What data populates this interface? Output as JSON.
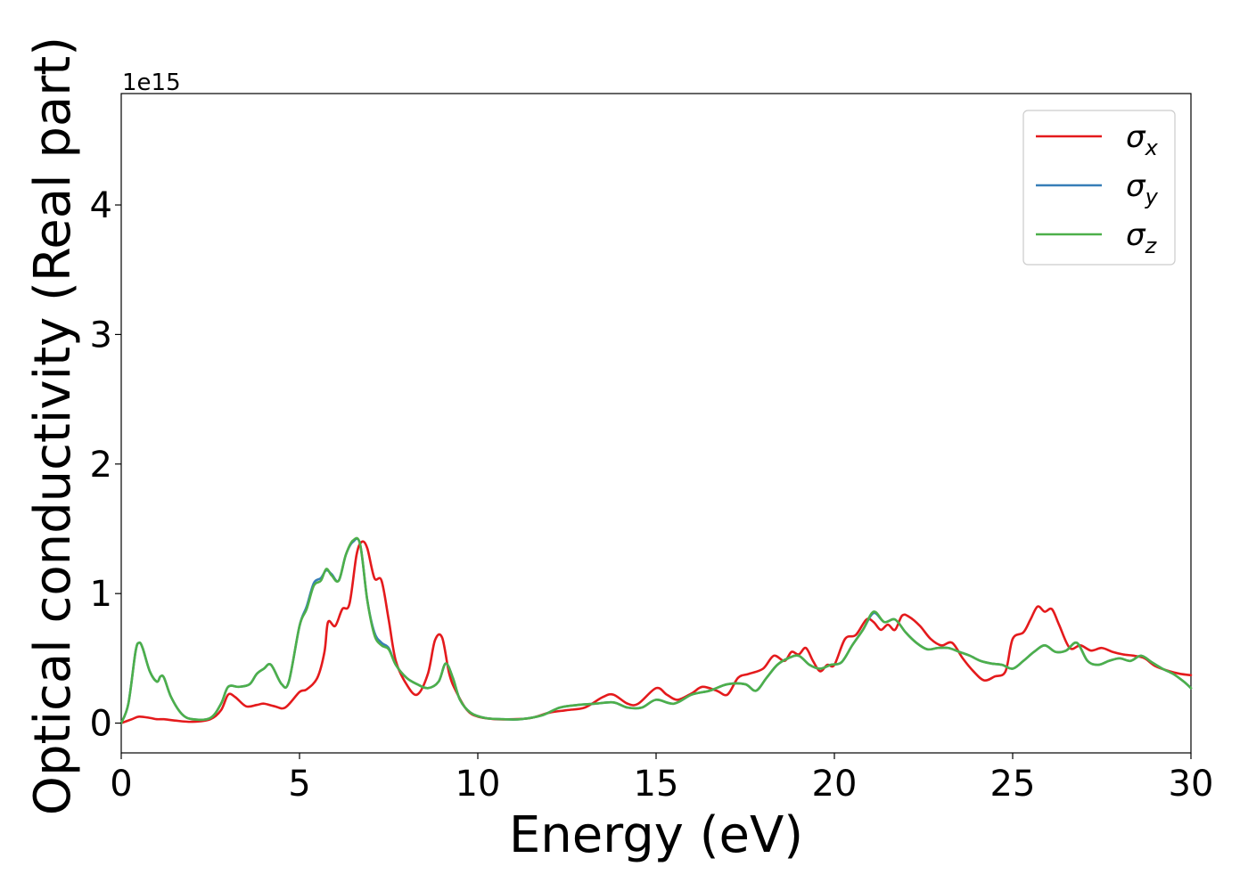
{
  "chart_data": {
    "type": "line",
    "xlabel": "Energy (eV)",
    "ylabel": "Optical conductivity (Real part)",
    "y_offset_label": "1e15",
    "y_scale": 1000000000000000.0,
    "xlim": [
      0,
      30
    ],
    "ylim": [
      -0.23,
      4.86
    ],
    "xticks": [
      0,
      5,
      10,
      15,
      20,
      25,
      30
    ],
    "xtick_labels": [
      "0",
      "5",
      "10",
      "15",
      "20",
      "25",
      "30"
    ],
    "yticks": [
      0,
      1,
      2,
      3,
      4
    ],
    "ytick_labels": [
      "0",
      "1",
      "2",
      "3",
      "4"
    ],
    "grid": false,
    "legend_position": "top-right",
    "series": [
      {
        "name": "σ",
        "subscript": "x",
        "color": "#e41a1c",
        "x": [
          0,
          0.3,
          0.5,
          0.8,
          1.0,
          1.2,
          1.5,
          2.0,
          2.5,
          2.8,
          3.0,
          3.2,
          3.5,
          3.8,
          4.0,
          4.3,
          4.6,
          5.0,
          5.2,
          5.5,
          5.7,
          5.8,
          6.0,
          6.2,
          6.4,
          6.6,
          6.75,
          6.9,
          7.1,
          7.3,
          7.5,
          7.7,
          8.0,
          8.3,
          8.6,
          8.8,
          9.0,
          9.2,
          9.4,
          9.7,
          10.0,
          10.5,
          11.0,
          11.5,
          12.0,
          12.5,
          13.0,
          13.5,
          13.8,
          14.2,
          14.5,
          15.0,
          15.3,
          15.6,
          16.0,
          16.3,
          16.7,
          17.0,
          17.3,
          17.6,
          18.0,
          18.3,
          18.6,
          18.8,
          19.0,
          19.2,
          19.4,
          19.6,
          19.8,
          20.0,
          20.3,
          20.6,
          20.9,
          21.1,
          21.3,
          21.5,
          21.7,
          21.9,
          22.1,
          22.4,
          22.7,
          23.0,
          23.3,
          23.6,
          23.9,
          24.2,
          24.5,
          24.8,
          25.0,
          25.3,
          25.5,
          25.7,
          25.9,
          26.1,
          26.3,
          26.6,
          26.9,
          27.2,
          27.5,
          27.8,
          28.1,
          28.4,
          28.7,
          29.0,
          29.4,
          29.7,
          30.0
        ],
        "values": [
          0.0,
          0.03,
          0.05,
          0.04,
          0.03,
          0.03,
          0.02,
          0.01,
          0.03,
          0.1,
          0.22,
          0.2,
          0.13,
          0.14,
          0.15,
          0.13,
          0.12,
          0.24,
          0.26,
          0.35,
          0.55,
          0.78,
          0.75,
          0.88,
          0.92,
          1.3,
          1.4,
          1.35,
          1.12,
          1.1,
          0.8,
          0.48,
          0.3,
          0.22,
          0.38,
          0.64,
          0.66,
          0.38,
          0.24,
          0.1,
          0.05,
          0.03,
          0.03,
          0.04,
          0.08,
          0.1,
          0.12,
          0.2,
          0.22,
          0.15,
          0.15,
          0.27,
          0.22,
          0.18,
          0.23,
          0.28,
          0.25,
          0.22,
          0.35,
          0.38,
          0.42,
          0.52,
          0.48,
          0.55,
          0.53,
          0.58,
          0.48,
          0.4,
          0.45,
          0.45,
          0.65,
          0.68,
          0.8,
          0.78,
          0.72,
          0.76,
          0.72,
          0.83,
          0.82,
          0.75,
          0.65,
          0.6,
          0.62,
          0.5,
          0.4,
          0.33,
          0.36,
          0.4,
          0.65,
          0.7,
          0.8,
          0.9,
          0.86,
          0.88,
          0.76,
          0.58,
          0.6,
          0.56,
          0.58,
          0.55,
          0.53,
          0.52,
          0.5,
          0.44,
          0.4,
          0.38,
          0.37
        ]
      },
      {
        "name": "σ",
        "subscript": "y",
        "color": "#377eb8",
        "x": [
          0,
          0.2,
          0.4,
          0.5,
          0.6,
          0.8,
          1.0,
          1.1,
          1.2,
          1.4,
          1.7,
          2.0,
          2.5,
          2.8,
          3.0,
          3.3,
          3.6,
          3.8,
          4.0,
          4.2,
          4.5,
          4.7,
          5.0,
          5.2,
          5.4,
          5.6,
          5.75,
          5.9,
          6.1,
          6.3,
          6.5,
          6.7,
          6.9,
          7.1,
          7.3,
          7.5,
          7.7,
          8.0,
          8.3,
          8.6,
          8.9,
          9.1,
          9.3,
          9.5,
          9.8,
          10.2,
          10.7,
          11.2,
          11.8,
          12.3,
          12.8,
          13.3,
          13.8,
          14.2,
          14.6,
          15.0,
          15.5,
          16.0,
          16.5,
          17.0,
          17.5,
          17.8,
          18.1,
          18.4,
          18.7,
          19.0,
          19.3,
          19.6,
          19.9,
          20.2,
          20.5,
          20.8,
          21.1,
          21.4,
          21.7,
          22.0,
          22.3,
          22.6,
          22.9,
          23.2,
          23.5,
          23.8,
          24.1,
          24.4,
          24.7,
          25.0,
          25.3,
          25.6,
          25.9,
          26.2,
          26.5,
          26.8,
          27.1,
          27.4,
          27.7,
          28.0,
          28.3,
          28.6,
          28.9,
          29.2,
          29.5,
          29.8,
          30.0
        ],
        "values": [
          0.0,
          0.15,
          0.55,
          0.62,
          0.58,
          0.4,
          0.32,
          0.36,
          0.35,
          0.2,
          0.07,
          0.03,
          0.04,
          0.15,
          0.28,
          0.28,
          0.3,
          0.38,
          0.42,
          0.45,
          0.3,
          0.32,
          0.75,
          0.9,
          1.08,
          1.12,
          1.18,
          1.15,
          1.1,
          1.3,
          1.4,
          1.38,
          0.95,
          0.7,
          0.62,
          0.58,
          0.45,
          0.35,
          0.3,
          0.27,
          0.32,
          0.46,
          0.35,
          0.18,
          0.08,
          0.04,
          0.03,
          0.03,
          0.06,
          0.12,
          0.14,
          0.15,
          0.16,
          0.12,
          0.12,
          0.18,
          0.15,
          0.22,
          0.25,
          0.3,
          0.3,
          0.25,
          0.35,
          0.45,
          0.5,
          0.52,
          0.45,
          0.42,
          0.45,
          0.47,
          0.6,
          0.72,
          0.85,
          0.78,
          0.8,
          0.7,
          0.62,
          0.57,
          0.58,
          0.58,
          0.55,
          0.52,
          0.48,
          0.46,
          0.45,
          0.42,
          0.48,
          0.55,
          0.6,
          0.55,
          0.56,
          0.62,
          0.48,
          0.45,
          0.48,
          0.5,
          0.48,
          0.52,
          0.47,
          0.42,
          0.38,
          0.32,
          0.27
        ]
      },
      {
        "name": "σ",
        "subscript": "z",
        "color": "#4daf4a",
        "x": [
          0,
          0.2,
          0.4,
          0.5,
          0.6,
          0.8,
          1.0,
          1.1,
          1.2,
          1.4,
          1.7,
          2.0,
          2.5,
          2.8,
          3.0,
          3.3,
          3.6,
          3.8,
          4.0,
          4.2,
          4.5,
          4.7,
          5.0,
          5.2,
          5.4,
          5.6,
          5.75,
          5.9,
          6.1,
          6.3,
          6.5,
          6.7,
          6.9,
          7.1,
          7.3,
          7.5,
          7.7,
          8.0,
          8.3,
          8.6,
          8.9,
          9.1,
          9.3,
          9.5,
          9.8,
          10.2,
          10.7,
          11.2,
          11.8,
          12.3,
          12.8,
          13.3,
          13.8,
          14.2,
          14.6,
          15.0,
          15.5,
          16.0,
          16.5,
          17.0,
          17.5,
          17.8,
          18.1,
          18.4,
          18.7,
          19.0,
          19.3,
          19.6,
          19.9,
          20.2,
          20.5,
          20.8,
          21.1,
          21.4,
          21.7,
          22.0,
          22.3,
          22.6,
          22.9,
          23.2,
          23.5,
          23.8,
          24.1,
          24.4,
          24.7,
          25.0,
          25.3,
          25.6,
          25.9,
          26.2,
          26.5,
          26.8,
          27.1,
          27.4,
          27.7,
          28.0,
          28.3,
          28.6,
          28.9,
          29.2,
          29.5,
          29.8,
          30.0
        ],
        "values": [
          0.0,
          0.15,
          0.55,
          0.62,
          0.58,
          0.4,
          0.32,
          0.36,
          0.35,
          0.2,
          0.07,
          0.03,
          0.04,
          0.15,
          0.28,
          0.28,
          0.3,
          0.38,
          0.42,
          0.45,
          0.3,
          0.32,
          0.75,
          0.88,
          1.06,
          1.1,
          1.19,
          1.14,
          1.1,
          1.3,
          1.41,
          1.38,
          0.95,
          0.68,
          0.6,
          0.57,
          0.45,
          0.35,
          0.3,
          0.27,
          0.32,
          0.46,
          0.35,
          0.18,
          0.08,
          0.04,
          0.03,
          0.03,
          0.06,
          0.12,
          0.14,
          0.15,
          0.16,
          0.12,
          0.12,
          0.18,
          0.15,
          0.22,
          0.25,
          0.3,
          0.3,
          0.25,
          0.35,
          0.45,
          0.5,
          0.52,
          0.45,
          0.42,
          0.45,
          0.47,
          0.6,
          0.72,
          0.86,
          0.78,
          0.8,
          0.7,
          0.62,
          0.57,
          0.58,
          0.58,
          0.55,
          0.52,
          0.48,
          0.46,
          0.45,
          0.42,
          0.48,
          0.55,
          0.6,
          0.55,
          0.56,
          0.62,
          0.48,
          0.45,
          0.48,
          0.5,
          0.48,
          0.52,
          0.47,
          0.42,
          0.38,
          0.32,
          0.27
        ]
      }
    ]
  }
}
